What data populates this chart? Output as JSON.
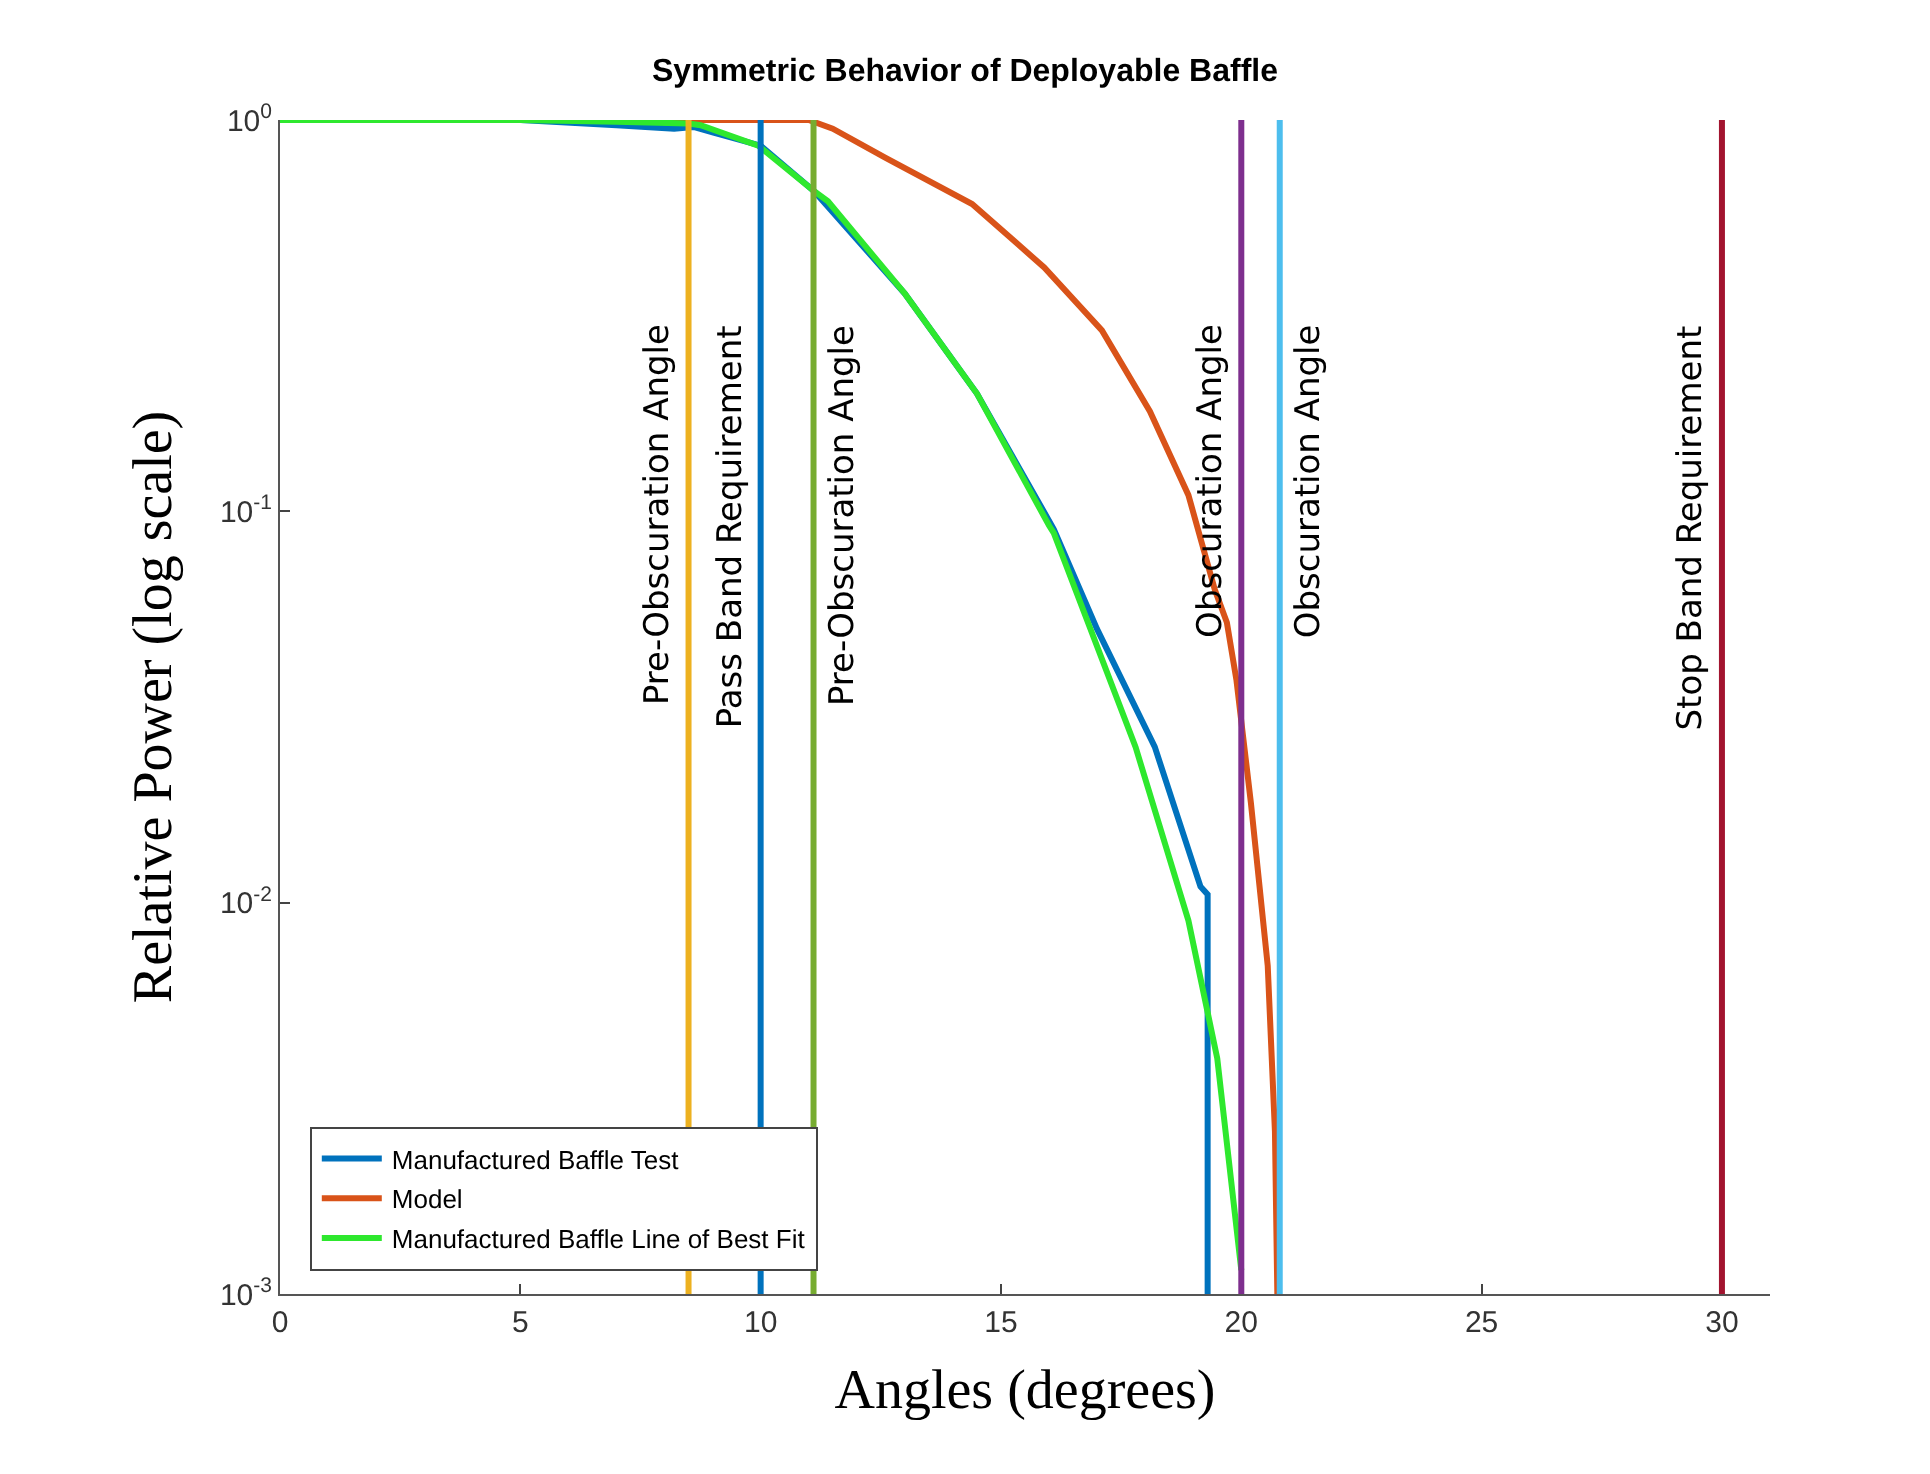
{
  "chart_data": {
    "type": "line",
    "title": "Symmetric Behavior of Deployable Baffle",
    "xlabel": "Angles (degrees)",
    "ylabel": "Relative Power (log scale)",
    "log": "y",
    "legend": "bottom left",
    "marker": "none",
    "line_style": "solid",
    "xlim": [
      0,
      31
    ],
    "xticks": [
      0,
      5,
      10,
      15,
      20,
      25,
      30
    ],
    "ylim": [
      0.001,
      1
    ],
    "yticks": [
      {
        "value": 0.001,
        "label": "10$^{-3}$"
      },
      {
        "value": 0.01,
        "label": "10$^{-2}$"
      },
      {
        "value": 0.1,
        "label": "10$^{-1}$"
      },
      {
        "value": 1,
        "label": "10$^{0}$"
      }
    ],
    "series": [
      {
        "name": "Manufactured Baffle Test",
        "color": "#0072bd",
        "x": [
          0,
          3,
          5,
          7,
          8.2,
          8.6,
          9,
          10,
          11.1,
          11.4,
          13,
          14.5,
          16.1,
          17,
          18.2,
          19.15,
          19.3,
          19.3
        ],
        "values": [
          1.0,
          1.0,
          1.0,
          0.97,
          0.95,
          0.96,
          0.93,
          0.86,
          0.66,
          0.6,
          0.36,
          0.2,
          0.09,
          0.05,
          0.025,
          0.011,
          0.0105,
          0.001
        ]
      },
      {
        "name": "Model",
        "color": "#d95319",
        "x": [
          0,
          5,
          8.5,
          10,
          11,
          11.5,
          12.6,
          14.4,
          15.9,
          17.1,
          18.1,
          18.9,
          19.45,
          19.7,
          19.9,
          20.2,
          20.55,
          20.7,
          20.75
        ],
        "values": [
          1.0,
          1.0,
          1.0,
          1.0,
          1.0,
          0.95,
          0.8,
          0.61,
          0.42,
          0.29,
          0.18,
          0.11,
          0.063,
          0.052,
          0.037,
          0.018,
          0.0069,
          0.0026,
          0.001
        ]
      },
      {
        "name": "Manufactured Baffle Line of Best Fit",
        "color": "#2ee82e",
        "x": [
          0,
          3,
          5,
          7,
          8.5,
          8.75,
          9.95,
          11.1,
          11.4,
          13,
          14.5,
          16.0,
          16.1,
          17.8,
          18.9,
          19.5,
          20.0
        ],
        "values": [
          1.0,
          1.0,
          1.0,
          0.99,
          0.98,
          0.97,
          0.86,
          0.66,
          0.62,
          0.36,
          0.2,
          0.092,
          0.088,
          0.025,
          0.009,
          0.004,
          0.00115
        ]
      }
    ],
    "ref_lines": [
      {
        "axis": "x",
        "value": 8.5,
        "label": "Pre-Obscuration Angle",
        "color": "#edb120"
      },
      {
        "axis": "x",
        "value": 10,
        "label": "Pass Band Requirement",
        "color": "#0072bd"
      },
      {
        "axis": "x",
        "value": 11.1,
        "label": "Pre-Obscuration Angle",
        "color": "#77ac30"
      },
      {
        "axis": "x",
        "value": 20,
        "label": "Obscuration Angle",
        "color": "#7e2f8e"
      },
      {
        "axis": "x",
        "value": 20.8,
        "label": "Obscuration Angle",
        "color": "#4dbeee"
      },
      {
        "axis": "x",
        "value": 30,
        "label": "Stop Band Requirement",
        "color": "#a2142f"
      }
    ]
  }
}
